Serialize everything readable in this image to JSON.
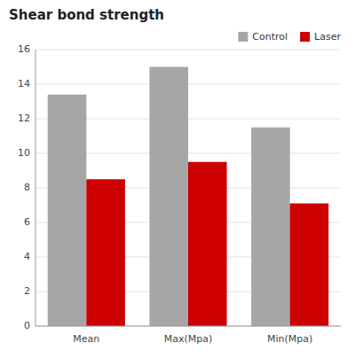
{
  "chart_data": {
    "type": "bar",
    "title": "Shear bond strength",
    "categories": [
      "Mean",
      "Max(Mpa)",
      "Min(Mpa)"
    ],
    "series": [
      {
        "name": "Control",
        "color": "#a6a6a6",
        "values": [
          13.4,
          15.0,
          11.5
        ]
      },
      {
        "name": "Laser",
        "color": "#cc0000",
        "values": [
          8.5,
          9.5,
          7.1
        ]
      }
    ],
    "ylim": [
      0,
      16
    ],
    "yticks": [
      0,
      2,
      4,
      6,
      8,
      10,
      12,
      14,
      16
    ],
    "grid": true,
    "legend": "top-right"
  }
}
